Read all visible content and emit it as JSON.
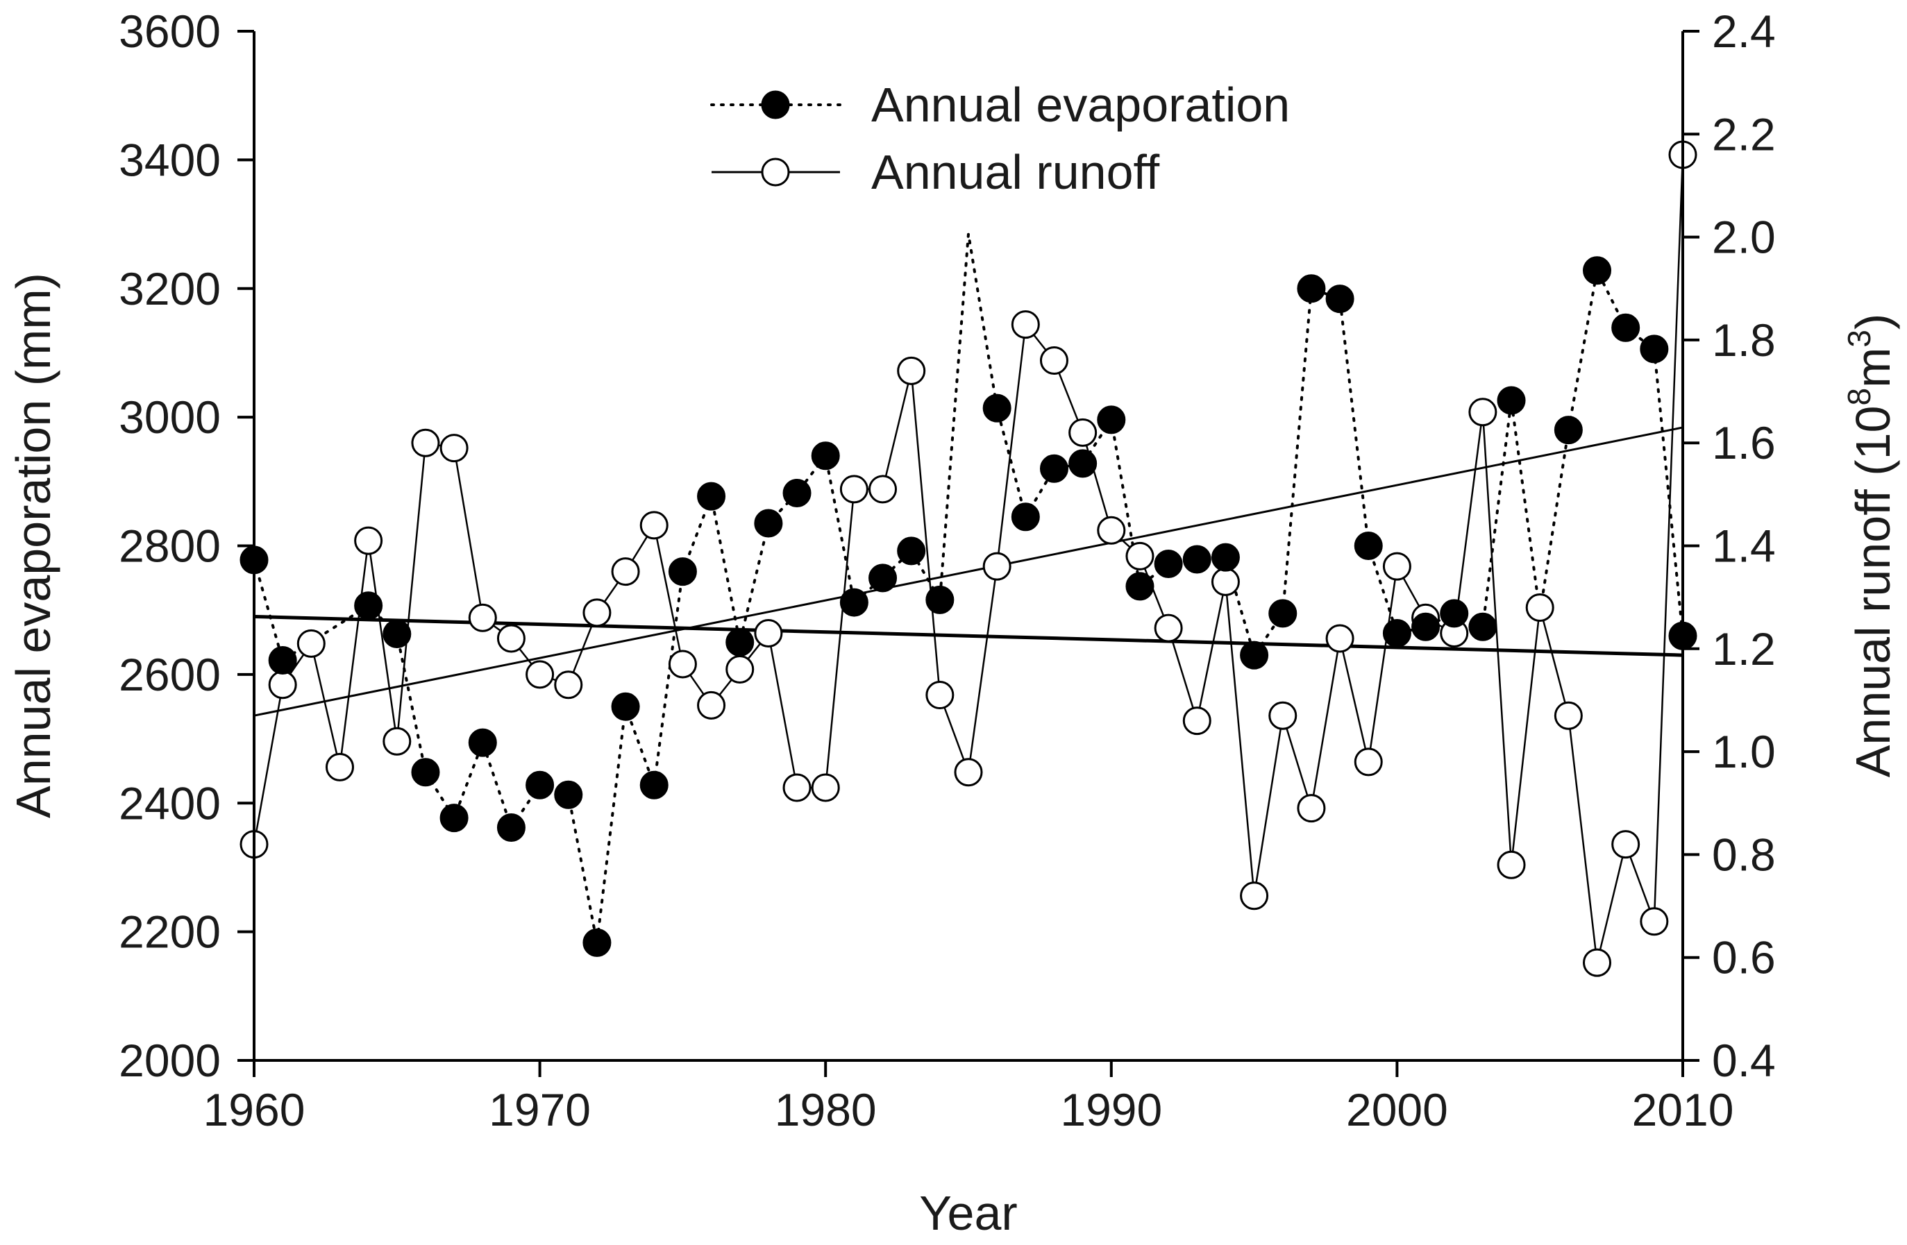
{
  "chart_data": {
    "type": "line",
    "xlabel": "Year",
    "ylabel_left": "Annual evaporation (mm)",
    "ylabel_right_prefix": "Annual runoff (10",
    "ylabel_right_exp1": "8",
    "ylabel_right_mid": "m",
    "ylabel_right_exp2": "3",
    "ylabel_right_suffix": ")",
    "xlim": [
      1960,
      2010
    ],
    "ylim_left": [
      2000,
      3600
    ],
    "ylim_right": [
      0.4,
      2.4
    ],
    "x_ticks": [
      1960,
      1970,
      1980,
      1990,
      2000,
      2010
    ],
    "y_ticks_left": [
      2000,
      2200,
      2400,
      2600,
      2800,
      3000,
      3200,
      3400,
      3600
    ],
    "y_ticks_right": [
      "0.4",
      "0.6",
      "0.8",
      "1.0",
      "1.2",
      "1.4",
      "1.6",
      "1.8",
      "2.0",
      "2.2",
      "2.4"
    ],
    "legend_position": "top-center",
    "series": [
      {
        "name": "Annual evaporation",
        "axis": "left",
        "line": "dotted",
        "marker": "filled-circle",
        "x": [
          1960,
          1961,
          1962,
          1963,
          1964,
          1965,
          1966,
          1967,
          1968,
          1969,
          1970,
          1971,
          1972,
          1973,
          1974,
          1975,
          1976,
          1977,
          1978,
          1979,
          1980,
          1981,
          1982,
          1983,
          1984,
          1985,
          1986,
          1987,
          1988,
          1989,
          1990,
          1991,
          1992,
          1993,
          1994,
          1995,
          1996,
          1997,
          1998,
          1999,
          2000,
          2001,
          2002,
          2003,
          2004,
          2005,
          2006,
          2007,
          2008,
          2009,
          2010
        ],
        "values": [
          2778,
          2622,
          null,
          null,
          2707,
          2663,
          2448,
          2377,
          2494,
          2362,
          2428,
          2413,
          2183,
          2550,
          2428,
          2760,
          2877,
          2650,
          2835,
          2882,
          2940,
          2712,
          2750,
          2792,
          2716,
          3285,
          3014,
          2845,
          2920,
          2928,
          2996,
          2737,
          2772,
          2779,
          2782,
          2630,
          2695,
          3200,
          3184,
          2800,
          2664,
          2674,
          2695,
          2674,
          3026,
          2695,
          2980,
          3228,
          3139,
          3106,
          2660
        ],
        "marked": [
          true,
          true,
          false,
          false,
          true,
          true,
          true,
          true,
          true,
          true,
          true,
          true,
          true,
          true,
          true,
          true,
          true,
          true,
          true,
          true,
          true,
          true,
          true,
          true,
          true,
          false,
          true,
          true,
          true,
          true,
          true,
          true,
          true,
          true,
          true,
          true,
          true,
          true,
          true,
          true,
          true,
          true,
          true,
          true,
          true,
          false,
          true,
          true,
          true,
          true,
          true
        ]
      },
      {
        "name": "Annual runoff",
        "axis": "right",
        "line": "solid",
        "marker": "open-circle",
        "x": [
          1960,
          1961,
          1962,
          1963,
          1964,
          1965,
          1966,
          1967,
          1968,
          1969,
          1970,
          1971,
          1972,
          1973,
          1974,
          1975,
          1976,
          1977,
          1978,
          1979,
          1980,
          1981,
          1982,
          1983,
          1984,
          1985,
          1986,
          1987,
          1988,
          1989,
          1990,
          1991,
          1992,
          1993,
          1994,
          1995,
          1996,
          1997,
          1998,
          1999,
          2000,
          2001,
          2002,
          2003,
          2004,
          2005,
          2006,
          2007,
          2008,
          2009,
          2010
        ],
        "values": [
          0.82,
          1.13,
          1.21,
          0.97,
          1.41,
          1.02,
          1.6,
          1.59,
          1.26,
          1.22,
          1.15,
          1.13,
          1.27,
          1.35,
          1.44,
          1.17,
          1.09,
          1.16,
          1.23,
          0.93,
          0.93,
          1.51,
          1.51,
          1.74,
          1.11,
          0.96,
          1.36,
          1.83,
          1.76,
          1.62,
          1.43,
          1.38,
          1.24,
          1.06,
          1.33,
          0.72,
          1.07,
          0.89,
          1.22,
          0.98,
          1.36,
          1.26,
          1.23,
          1.66,
          0.78,
          1.28,
          1.07,
          0.59,
          0.82,
          0.67,
          2.16
        ]
      }
    ],
    "trend_lines": [
      {
        "name": "evaporation-trend",
        "axis": "left",
        "x": [
          1960,
          2010
        ],
        "values": [
          2690,
          2630
        ],
        "weight": "heavy"
      },
      {
        "name": "runoff-trend",
        "axis": "right",
        "x": [
          1960,
          2010
        ],
        "values": [
          1.07,
          1.63
        ],
        "weight": "light"
      }
    ]
  }
}
